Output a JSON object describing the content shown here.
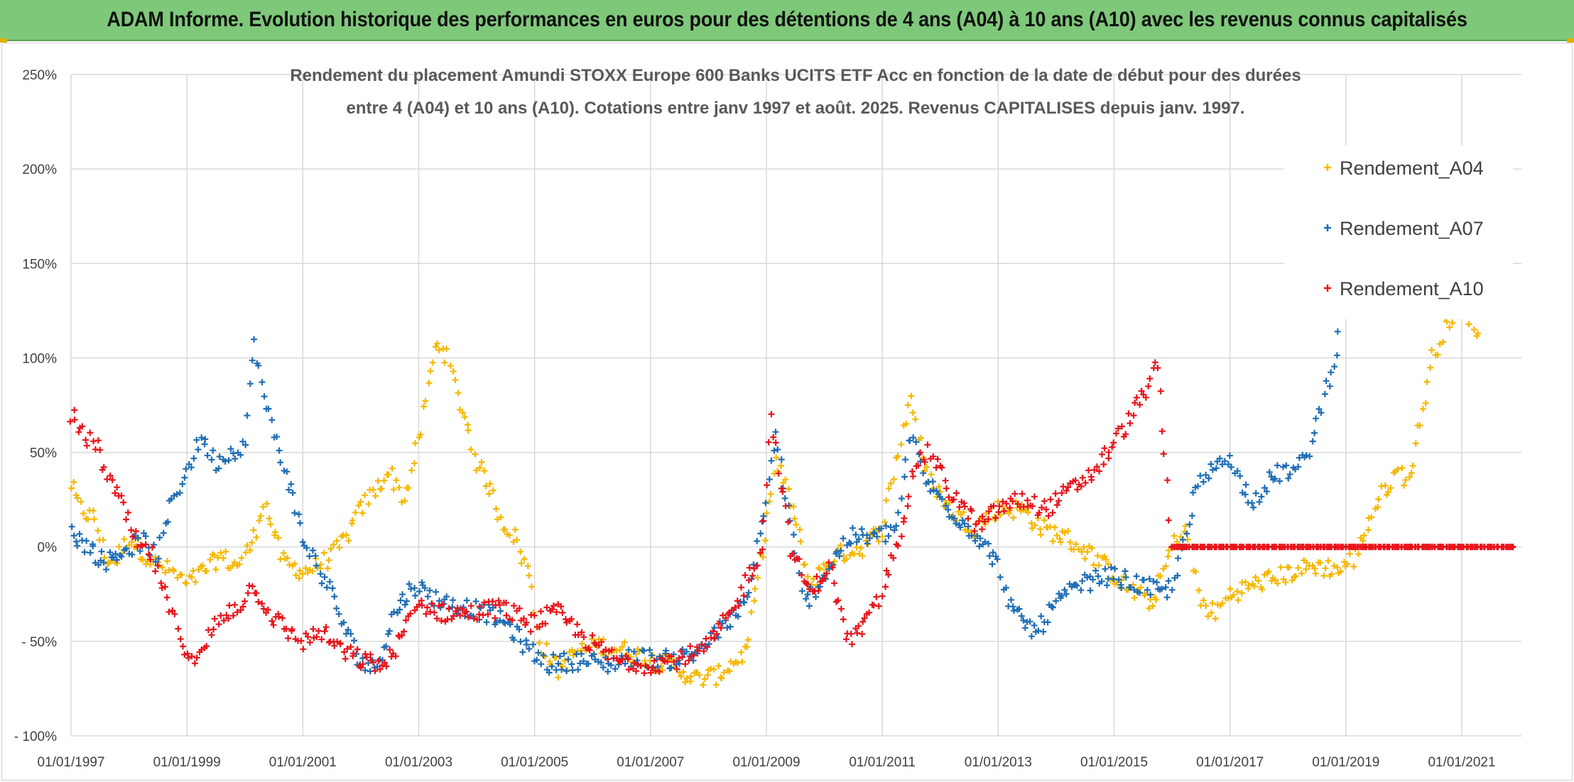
{
  "header": {
    "title": "ADAM Informe. Evolution historique des performances en euros pour des détentions de 4 ans (A04) à 10 ans (A10) avec les revenus connus capitalisés"
  },
  "chart_data": {
    "type": "scatter",
    "title_lines": [
      "Rendement du placement Amundi STOXX Europe 600 Banks UCITS ETF Acc en fonction de la date de début pour des durées",
      "entre 4 (A04) et 10 ans (A10). Cotations entre janv 1997 et août. 2025. Revenus CAPITALISES depuis janv. 1997."
    ],
    "xlabel": "",
    "ylabel": "",
    "x_ticks": [
      "01/01/1997",
      "01/01/1999",
      "01/01/2001",
      "01/01/2003",
      "01/01/2005",
      "01/01/2007",
      "01/01/2009",
      "01/01/2011",
      "01/01/2013",
      "01/01/2015",
      "01/01/2017",
      "01/01/2019",
      "01/01/2021"
    ],
    "y_ticks": [
      "250%",
      "200%",
      "150%",
      "100%",
      "50%",
      "0%",
      "- 50%",
      "- 100%"
    ],
    "xlim": [
      "1997-01-01",
      "2021-12-31"
    ],
    "ylim": [
      -100,
      250
    ],
    "grid": true,
    "legend_position": "top-right",
    "series": [
      {
        "name": "Rendement_A04",
        "color": "#f5b800",
        "points": [
          [
            "1997-01-01",
            33
          ],
          [
            "1997-02-15",
            22
          ],
          [
            "1997-04-01",
            18
          ],
          [
            "1997-06-01",
            15
          ],
          [
            "1997-08-01",
            -5
          ],
          [
            "1997-10-01",
            -8
          ],
          [
            "1998-01-01",
            5
          ],
          [
            "1998-04-01",
            -3
          ],
          [
            "1998-07-01",
            -10
          ],
          [
            "1998-10-01",
            -13
          ],
          [
            "1999-01-01",
            -20
          ],
          [
            "1999-04-01",
            -14
          ],
          [
            "1999-08-01",
            -5
          ],
          [
            "1999-11-01",
            -10
          ],
          [
            "2000-01-01",
            -5
          ],
          [
            "2000-03-01",
            5
          ],
          [
            "2000-05-01",
            25
          ],
          [
            "2000-07-01",
            8
          ],
          [
            "2000-09-01",
            -8
          ],
          [
            "2001-01-01",
            -13
          ],
          [
            "2001-04-01",
            -10
          ],
          [
            "2001-07-01",
            -5
          ],
          [
            "2001-10-01",
            5
          ],
          [
            "2002-01-01",
            20
          ],
          [
            "2002-04-01",
            30
          ],
          [
            "2002-07-01",
            40
          ],
          [
            "2002-10-01",
            25
          ],
          [
            "2003-01-01",
            55
          ],
          [
            "2003-03-01",
            85
          ],
          [
            "2003-05-01",
            110
          ],
          [
            "2003-07-01",
            100
          ],
          [
            "2003-09-01",
            80
          ],
          [
            "2003-11-01",
            65
          ],
          [
            "2004-01-01",
            45
          ],
          [
            "2004-04-01",
            30
          ],
          [
            "2004-06-01",
            15
          ],
          [
            "2004-09-01",
            5
          ],
          [
            "2004-12-01",
            -15
          ],
          [
            "2005-02-01",
            -50
          ],
          [
            "2005-06-01",
            -65
          ],
          [
            "2005-10-01",
            -55
          ],
          [
            "2006-03-01",
            -52
          ],
          [
            "2006-08-01",
            -55
          ],
          [
            "2007-01-01",
            -60
          ],
          [
            "2007-06-01",
            -63
          ],
          [
            "2007-10-01",
            -70
          ],
          [
            "2008-03-01",
            -68
          ],
          [
            "2008-09-01",
            -55
          ],
          [
            "2009-01-01",
            15
          ],
          [
            "2009-03-01",
            45
          ],
          [
            "2009-06-01",
            25
          ],
          [
            "2009-10-01",
            -20
          ],
          [
            "2010-03-01",
            -5
          ],
          [
            "2010-09-01",
            0
          ],
          [
            "2011-01-01",
            10
          ],
          [
            "2011-04-01",
            45
          ],
          [
            "2011-07-01",
            80
          ],
          [
            "2011-10-01",
            40
          ],
          [
            "2012-03-01",
            20
          ],
          [
            "2012-08-01",
            10
          ],
          [
            "2013-01-01",
            20
          ],
          [
            "2013-06-01",
            20
          ],
          [
            "2013-10-01",
            10
          ],
          [
            "2014-03-01",
            5
          ],
          [
            "2014-09-01",
            -5
          ],
          [
            "2015-03-01",
            -20
          ],
          [
            "2015-09-01",
            -30
          ],
          [
            "2016-01-01",
            0
          ],
          [
            "2016-04-01",
            10
          ],
          [
            "2016-07-01",
            -30
          ],
          [
            "2016-10-01",
            -35
          ],
          [
            "2017-01-01",
            -25
          ],
          [
            "2017-06-01",
            -20
          ],
          [
            "2017-12-01",
            -15
          ],
          [
            "2018-06-01",
            -10
          ],
          [
            "2018-12-01",
            -12
          ],
          [
            "2019-03-01",
            -5
          ],
          [
            "2019-06-01",
            15
          ],
          [
            "2019-09-01",
            30
          ],
          [
            "2019-12-01",
            40
          ],
          [
            "2020-02-01",
            35
          ],
          [
            "2020-04-01",
            60
          ],
          [
            "2020-07-01",
            100
          ],
          [
            "2020-10-01",
            120
          ],
          [
            "2021-02-01",
            125
          ],
          [
            "2021-05-01",
            110
          ]
        ]
      },
      {
        "name": "Rendement_A07",
        "color": "#1f6eb5",
        "points": [
          [
            "1997-01-01",
            8
          ],
          [
            "1997-04-01",
            2
          ],
          [
            "1997-08-01",
            -8
          ],
          [
            "1998-01-01",
            0
          ],
          [
            "1998-04-01",
            3
          ],
          [
            "1998-07-01",
            -5
          ],
          [
            "1998-10-01",
            25
          ],
          [
            "1999-01-01",
            40
          ],
          [
            "1999-04-01",
            58
          ],
          [
            "1999-07-01",
            45
          ],
          [
            "1999-10-01",
            50
          ],
          [
            "2000-01-01",
            55
          ],
          [
            "2000-03-01",
            110
          ],
          [
            "2000-05-01",
            78
          ],
          [
            "2000-07-01",
            60
          ],
          [
            "2000-10-01",
            35
          ],
          [
            "2001-01-01",
            5
          ],
          [
            "2001-04-01",
            -10
          ],
          [
            "2001-07-01",
            -25
          ],
          [
            "2001-10-01",
            -45
          ],
          [
            "2002-01-01",
            -60
          ],
          [
            "2002-04-01",
            -65
          ],
          [
            "2002-08-01",
            -35
          ],
          [
            "2002-12-01",
            -20
          ],
          [
            "2003-03-01",
            -25
          ],
          [
            "2003-07-01",
            -30
          ],
          [
            "2003-11-01",
            -32
          ],
          [
            "2004-03-01",
            -35
          ],
          [
            "2004-07-01",
            -40
          ],
          [
            "2004-12-01",
            -55
          ],
          [
            "2005-04-01",
            -62
          ],
          [
            "2005-10-01",
            -60
          ],
          [
            "2006-04-01",
            -62
          ],
          [
            "2006-10-01",
            -58
          ],
          [
            "2007-04-01",
            -60
          ],
          [
            "2007-10-01",
            -57
          ],
          [
            "2008-03-01",
            -45
          ],
          [
            "2008-09-01",
            -30
          ],
          [
            "2009-01-01",
            25
          ],
          [
            "2009-03-01",
            60
          ],
          [
            "2009-06-01",
            10
          ],
          [
            "2009-09-01",
            -30
          ],
          [
            "2010-01-01",
            -15
          ],
          [
            "2010-06-01",
            5
          ],
          [
            "2010-12-01",
            5
          ],
          [
            "2011-04-01",
            10
          ],
          [
            "2011-07-01",
            60
          ],
          [
            "2011-10-01",
            35
          ],
          [
            "2012-03-01",
            20
          ],
          [
            "2012-09-01",
            5
          ],
          [
            "2013-01-01",
            -10
          ],
          [
            "2013-04-01",
            -35
          ],
          [
            "2013-09-01",
            -45
          ],
          [
            "2014-01-01",
            -30
          ],
          [
            "2014-06-01",
            -20
          ],
          [
            "2014-12-01",
            -15
          ],
          [
            "2015-06-01",
            -20
          ],
          [
            "2015-12-01",
            -25
          ],
          [
            "2016-03-01",
            -5
          ],
          [
            "2016-06-01",
            30
          ],
          [
            "2016-09-01",
            40
          ],
          [
            "2016-12-01",
            50
          ],
          [
            "2017-03-01",
            35
          ],
          [
            "2017-06-01",
            25
          ],
          [
            "2017-09-01",
            35
          ],
          [
            "2017-12-01",
            40
          ],
          [
            "2018-03-01",
            40
          ],
          [
            "2018-06-01",
            55
          ],
          [
            "2018-09-01",
            85
          ],
          [
            "2018-12-01",
            115
          ]
        ]
      },
      {
        "name": "Rendement_A10",
        "color": "#e8141b",
        "points": [
          [
            "1997-01-01",
            70
          ],
          [
            "1997-03-01",
            60
          ],
          [
            "1997-06-01",
            55
          ],
          [
            "1997-09-01",
            35
          ],
          [
            "1997-12-01",
            20
          ],
          [
            "1998-03-01",
            0
          ],
          [
            "1998-06-01",
            -5
          ],
          [
            "1998-09-01",
            -30
          ],
          [
            "1998-12-01",
            -50
          ],
          [
            "1999-03-01",
            -62
          ],
          [
            "1999-06-01",
            -45
          ],
          [
            "1999-09-01",
            -35
          ],
          [
            "1999-12-01",
            -30
          ],
          [
            "2000-03-01",
            -20
          ],
          [
            "2000-06-01",
            -35
          ],
          [
            "2000-10-01",
            -45
          ],
          [
            "2001-01-01",
            -50
          ],
          [
            "2001-05-01",
            -45
          ],
          [
            "2001-09-01",
            -55
          ],
          [
            "2002-01-01",
            -60
          ],
          [
            "2002-06-01",
            -63
          ],
          [
            "2002-10-01",
            -45
          ],
          [
            "2003-01-01",
            -30
          ],
          [
            "2003-06-01",
            -35
          ],
          [
            "2003-12-01",
            -35
          ],
          [
            "2004-06-01",
            -32
          ],
          [
            "2004-12-01",
            -40
          ],
          [
            "2005-06-01",
            -35
          ],
          [
            "2005-12-01",
            -50
          ],
          [
            "2006-06-01",
            -60
          ],
          [
            "2006-12-01",
            -62
          ],
          [
            "2007-06-01",
            -60
          ],
          [
            "2007-12-01",
            -55
          ],
          [
            "2008-06-01",
            -35
          ],
          [
            "2008-12-01",
            0
          ],
          [
            "2009-02-01",
            70
          ],
          [
            "2009-06-01",
            0
          ],
          [
            "2009-10-01",
            -25
          ],
          [
            "2010-02-01",
            -10
          ],
          [
            "2010-06-01",
            -50
          ],
          [
            "2010-10-01",
            -40
          ],
          [
            "2011-01-01",
            -25
          ],
          [
            "2011-04-01",
            0
          ],
          [
            "2011-08-01",
            45
          ],
          [
            "2011-11-01",
            50
          ],
          [
            "2012-03-01",
            30
          ],
          [
            "2012-09-01",
            10
          ],
          [
            "2013-01-01",
            20
          ],
          [
            "2013-06-01",
            25
          ],
          [
            "2013-11-01",
            20
          ],
          [
            "2014-04-01",
            30
          ],
          [
            "2014-09-01",
            40
          ],
          [
            "2015-01-01",
            55
          ],
          [
            "2015-05-01",
            70
          ],
          [
            "2015-10-01",
            95
          ],
          [
            "2016-01-01",
            0
          ],
          [
            "2016-06-01",
            0
          ],
          [
            "2017-01-01",
            0
          ],
          [
            "2018-01-01",
            0
          ],
          [
            "2019-01-01",
            0
          ],
          [
            "2020-01-01",
            0
          ],
          [
            "2021-01-01",
            0
          ],
          [
            "2021-12-01",
            0
          ]
        ]
      }
    ]
  }
}
